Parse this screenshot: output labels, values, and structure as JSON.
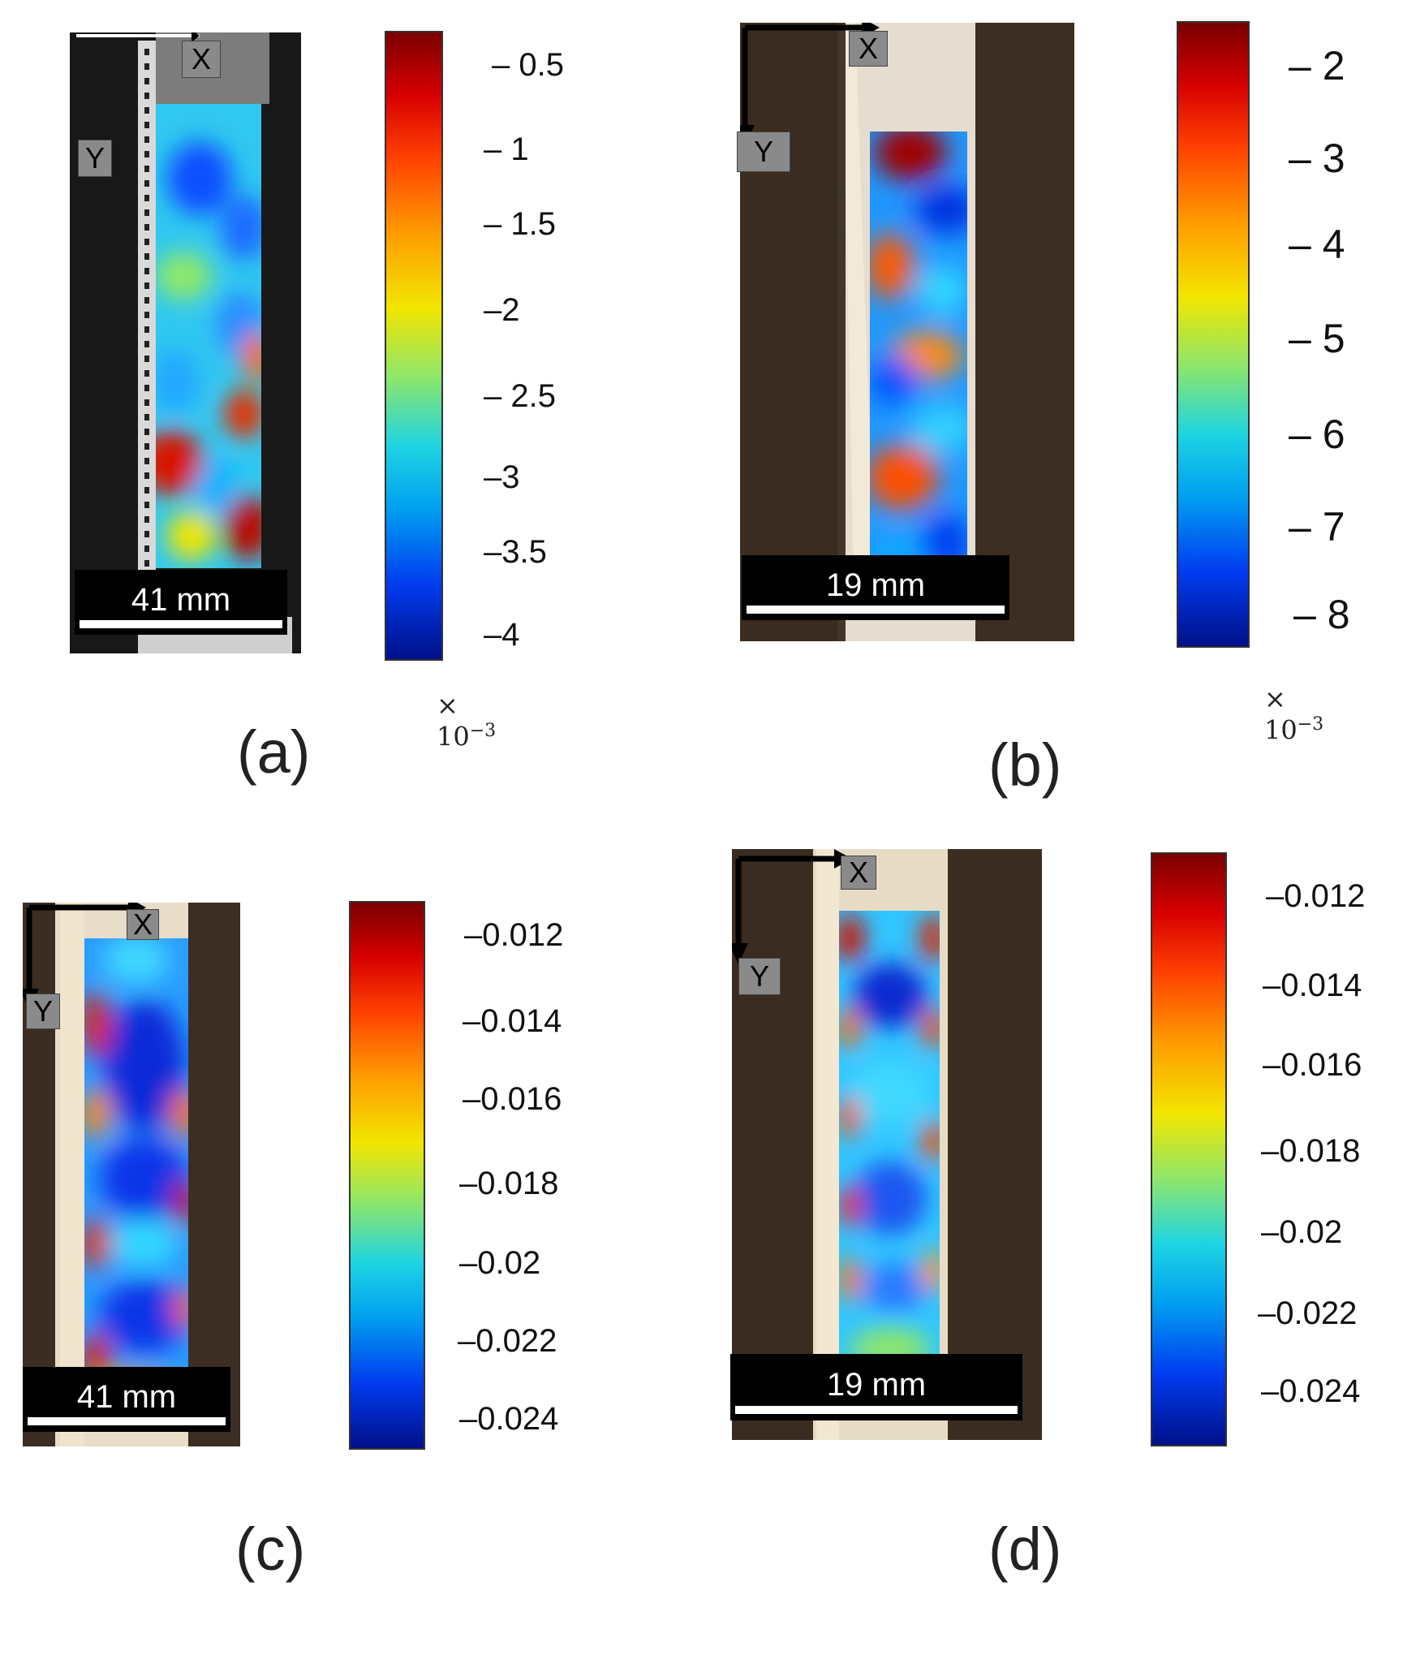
{
  "panels": {
    "a": {
      "caption": "(a)",
      "scale_label": "41 mm",
      "x_axis": "X",
      "y_axis": "Y",
      "exponent": "× 10",
      "exponent_power": "−3",
      "ticks": [
        "– 0.5",
        "– 1",
        "– 1.5",
        "–2",
        "– 2.5",
        "–3",
        "–3.5",
        "–4"
      ]
    },
    "b": {
      "caption": "(b)",
      "scale_label": "19 mm",
      "x_axis": "X",
      "y_axis": "Y",
      "exponent": "× 10",
      "exponent_power": "−3",
      "ticks": [
        "– 2",
        "– 3",
        "– 4",
        "– 5",
        "– 6",
        "– 7",
        "– 8"
      ]
    },
    "c": {
      "caption": "(c)",
      "scale_label": "41 mm",
      "x_axis": "X",
      "y_axis": "Y",
      "ticks": [
        "–0.012",
        "–0.014",
        "–0.016",
        "–0.018",
        "–0.02",
        "–0.022",
        "–0.024"
      ]
    },
    "d": {
      "caption": "(d)",
      "scale_label": "19 mm",
      "x_axis": "X",
      "y_axis": "Y",
      "ticks": [
        "–0.012",
        "–0.014",
        "–0.016",
        "–0.018",
        "–0.02",
        "–0.022",
        "–0.024"
      ]
    }
  }
}
